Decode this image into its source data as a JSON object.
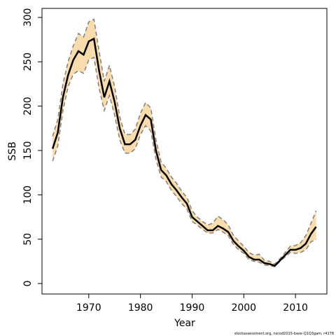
{
  "chart_data": {
    "type": "band-line",
    "xlabel": "Year",
    "ylabel": "SSB",
    "footnote": "stockassessment.org, nscod2015-base-Q1Q3gam, r4178",
    "x": [
      1963,
      1964,
      1965,
      1966,
      1967,
      1968,
      1969,
      1970,
      1971,
      1972,
      1973,
      1974,
      1975,
      1976,
      1977,
      1978,
      1979,
      1980,
      1981,
      1982,
      1983,
      1984,
      1985,
      1986,
      1987,
      1988,
      1989,
      1990,
      1991,
      1992,
      1993,
      1994,
      1995,
      1996,
      1997,
      1998,
      1999,
      2000,
      2001,
      2002,
      2003,
      2004,
      2005,
      2006,
      2007,
      2008,
      2009,
      2010,
      2011,
      2012,
      2013,
      2014
    ],
    "values": [
      152,
      170,
      210,
      235,
      252,
      262,
      258,
      273,
      276,
      240,
      210,
      228,
      205,
      175,
      157,
      157,
      162,
      178,
      190,
      185,
      150,
      128,
      122,
      112,
      105,
      97,
      90,
      75,
      70,
      65,
      60,
      60,
      65,
      62,
      58,
      48,
      42,
      37,
      30,
      27,
      27,
      23,
      22,
      20,
      26,
      32,
      38,
      38,
      40,
      45,
      56,
      64
    ],
    "lower": [
      138,
      155,
      195,
      222,
      236,
      240,
      237,
      252,
      255,
      220,
      195,
      212,
      190,
      162,
      147,
      147,
      152,
      168,
      178,
      172,
      140,
      120,
      115,
      105,
      98,
      90,
      84,
      70,
      66,
      61,
      57,
      57,
      61,
      58,
      54,
      44,
      38,
      34,
      27,
      25,
      24,
      21,
      20,
      19,
      25,
      30,
      35,
      34,
      35,
      38,
      47,
      50
    ],
    "upper": [
      166,
      185,
      225,
      250,
      268,
      282,
      278,
      295,
      298,
      262,
      228,
      246,
      222,
      188,
      168,
      168,
      174,
      192,
      204,
      198,
      162,
      137,
      130,
      120,
      113,
      104,
      97,
      82,
      75,
      70,
      66,
      68,
      76,
      72,
      66,
      54,
      48,
      42,
      35,
      32,
      33,
      26,
      25,
      22,
      28,
      35,
      42,
      43,
      46,
      54,
      68,
      82
    ],
    "color": "#000000",
    "band_color": "#f8dcae",
    "bound_color": "#808080",
    "xlim": [
      1960.95,
      2016.08
    ],
    "ylim": [
      -11.8,
      310.2
    ],
    "xticks": [
      1970,
      1980,
      1990,
      2000,
      2010
    ],
    "yticks": [
      0,
      50,
      100,
      150,
      200,
      250,
      300
    ]
  }
}
